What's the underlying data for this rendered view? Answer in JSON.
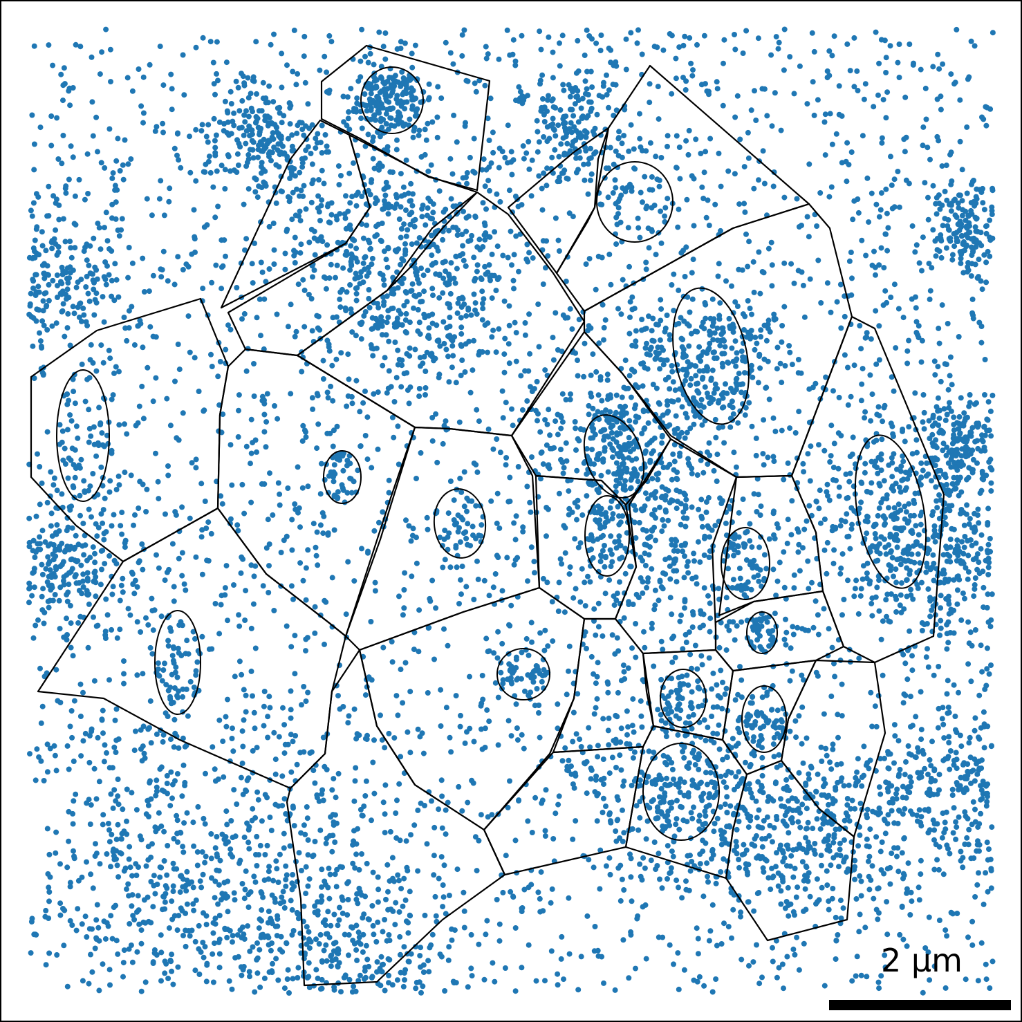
{
  "figure": {
    "kind": "segmentation-overlay",
    "point_color": "#1f77b4",
    "outline_color": "#000000",
    "background": "#ffffff",
    "frame_color": "#000000"
  },
  "scale_bar": {
    "label": "2 µm",
    "color": "#000000"
  }
}
